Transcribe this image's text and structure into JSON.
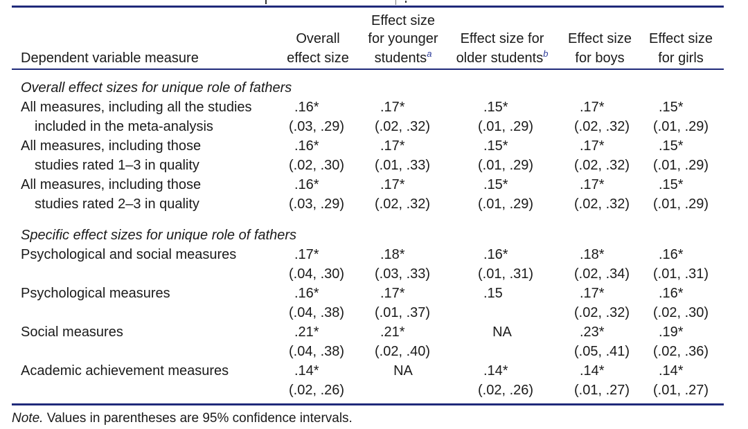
{
  "table": {
    "columns": [
      {
        "lines": [
          "",
          "",
          "Dependent variable measure"
        ]
      },
      {
        "lines": [
          "",
          "Overall",
          "effect size"
        ]
      },
      {
        "lines": [
          "Effect size",
          "for younger",
          "students"
        ],
        "footnote": "a"
      },
      {
        "lines": [
          "",
          "Effect size for",
          "older students"
        ],
        "footnote": "b"
      },
      {
        "lines": [
          "",
          "Effect size",
          "for boys"
        ]
      },
      {
        "lines": [
          "",
          "Effect size",
          "for girls"
        ]
      }
    ],
    "sections": [
      {
        "title": "Overall effect sizes for unique role of fathers",
        "rows": [
          {
            "label": [
              "All measures, including all the studies",
              "included in the meta-analysis"
            ],
            "values": [
              ".16*",
              ".17*",
              ".15*",
              ".17*",
              ".15*"
            ],
            "ci": [
              "(.03, .29)",
              "(.02, .32)",
              "(.01, .29)",
              "(.02, .32)",
              "(.01, .29)"
            ]
          },
          {
            "label": [
              "All measures, including those",
              "studies rated 1–3 in quality"
            ],
            "values": [
              ".16*",
              ".17*",
              ".15*",
              ".17*",
              ".15*"
            ],
            "ci": [
              "(.02, .30)",
              "(.01, .33)",
              "(.01, .29)",
              "(.02, .32)",
              "(.01, .29)"
            ]
          },
          {
            "label": [
              "All measures, including those",
              "studies rated 2–3 in quality"
            ],
            "values": [
              ".16*",
              ".17*",
              ".15*",
              ".17*",
              ".15*"
            ],
            "ci": [
              "(.03, .29)",
              "(.02, .32)",
              "(.01, .29)",
              "(.02, .32)",
              "(.01, .29)"
            ]
          }
        ]
      },
      {
        "title": "Specific effect sizes for unique role of fathers",
        "rows": [
          {
            "label": [
              "Psychological and social measures",
              ""
            ],
            "values": [
              ".17*",
              ".18*",
              ".16*",
              ".18*",
              ".16*"
            ],
            "ci": [
              "(.04, .30)",
              "(.03, .33)",
              "(.01, .31)",
              "(.02, .34)",
              "(.01, .31)"
            ]
          },
          {
            "label": [
              "Psychological measures",
              ""
            ],
            "values": [
              ".16*",
              ".17*",
              ".15",
              ".17*",
              ".16*"
            ],
            "ci": [
              "(.04, .38)",
              "(.01, .37)",
              "",
              "(.02, .32)",
              "(.02, .30)"
            ]
          },
          {
            "label": [
              "Social measures",
              ""
            ],
            "values": [
              ".21*",
              ".21*",
              "NA",
              ".23*",
              ".19*"
            ],
            "ci": [
              "(.04, .38)",
              "(.02, .40)",
              "",
              "(.05, .41)",
              "(.02, .36)"
            ]
          },
          {
            "label": [
              "Academic achievement measures",
              ""
            ],
            "values": [
              ".14*",
              "NA",
              ".14*",
              ".14*",
              ".14*"
            ],
            "ci": [
              "(.02, .26)",
              "",
              "(.02, .26)",
              "(.01, .27)",
              "(.01, .27)"
            ]
          }
        ]
      }
    ]
  },
  "note": {
    "label": "Note.",
    "text": " Values in parentheses are 95% confidence intervals."
  },
  "colors": {
    "rule": "#1f2a7a",
    "footnote": "#2b3a99"
  }
}
